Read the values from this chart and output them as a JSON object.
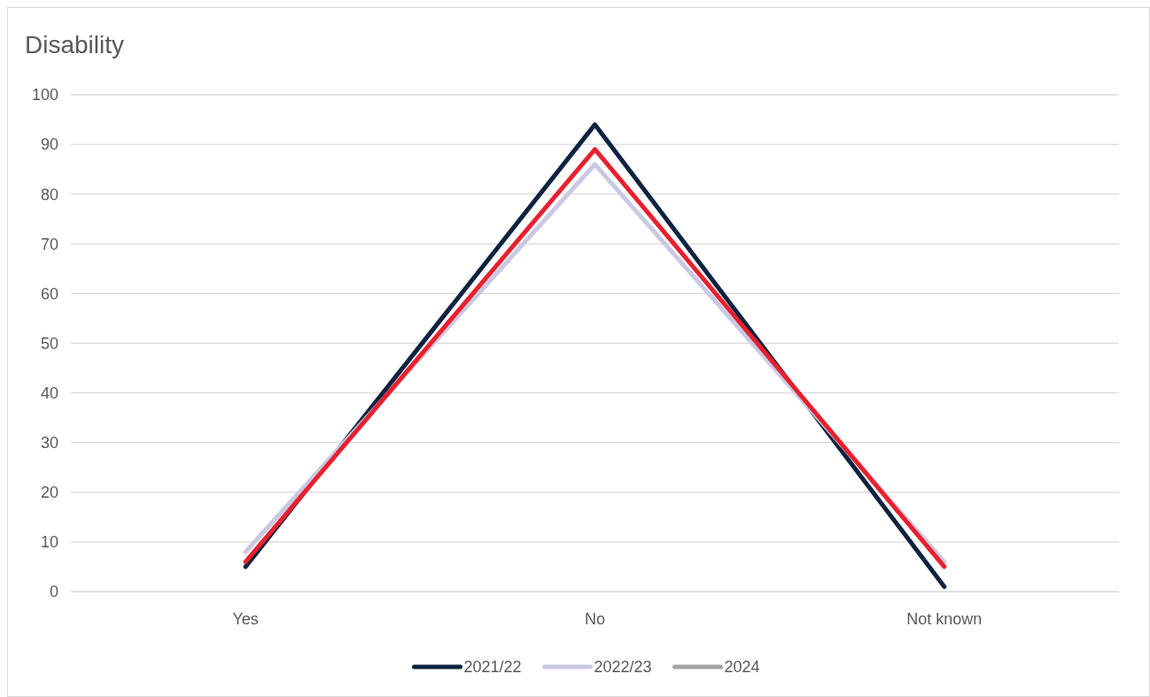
{
  "chart_data": {
    "type": "line",
    "title": "Disability",
    "categories": [
      "Yes",
      "No",
      "Not known"
    ],
    "series": [
      {
        "name": "2021/22",
        "color": "#0e2340",
        "values": [
          5,
          94,
          1
        ]
      },
      {
        "name": "2022/23",
        "color": "#c9c9e3",
        "values": [
          8,
          86,
          6
        ]
      },
      {
        "name": "2024",
        "color": "#a5a5a5",
        "values": [
          null,
          null,
          null
        ]
      },
      {
        "color": "#e8202e",
        "values": [
          6,
          89,
          5
        ]
      }
    ],
    "ylim": [
      0,
      100
    ],
    "yticks": [
      0,
      10,
      20,
      30,
      40,
      50,
      60,
      70,
      80,
      90,
      100
    ],
    "grid": "y",
    "legend": "bottom",
    "line_style": "solid",
    "marker": "none"
  }
}
